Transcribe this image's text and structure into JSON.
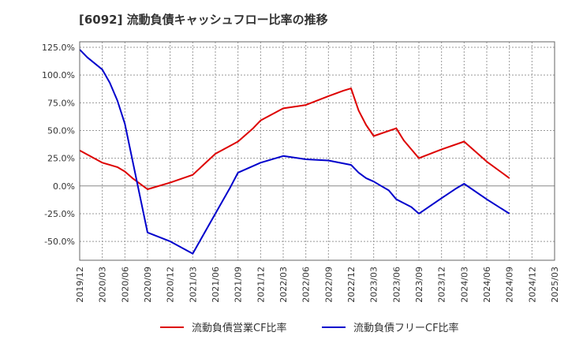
{
  "chart_data": {
    "type": "line",
    "title": "[6092]  流動負債キャッシュフロー比率の推移",
    "xlabel": "",
    "ylabel": "",
    "ylim": [
      -67,
      130
    ],
    "y_ticks": [
      125,
      100,
      75,
      50,
      25,
      0,
      -25,
      -50
    ],
    "y_tick_labels": [
      "125.0%",
      "100.0%",
      "75.0%",
      "50.0%",
      "25.0%",
      "0.0%",
      "-25.0%",
      "-50.0%"
    ],
    "x_range": [
      "2019/12",
      "2025/03"
    ],
    "x_tick_labels": [
      "2019/12",
      "2020/03",
      "2020/06",
      "2020/09",
      "2020/12",
      "2021/03",
      "2021/06",
      "2021/09",
      "2021/12",
      "2022/03",
      "2022/06",
      "2022/09",
      "2022/12",
      "2023/03",
      "2023/06",
      "2023/09",
      "2023/12",
      "2024/03",
      "2024/06",
      "2024/09",
      "2024/12",
      "2025/03"
    ],
    "grid": true,
    "legend_position": "bottom",
    "series": [
      {
        "name": "流動負債営業CF比率",
        "color": "#dd0000",
        "points": [
          [
            "2019/12",
            32
          ],
          [
            "2020/03",
            21
          ],
          [
            "2020/04",
            19
          ],
          [
            "2020/05",
            17
          ],
          [
            "2020/06",
            13
          ],
          [
            "2020/07",
            7
          ],
          [
            "2020/09",
            -3
          ],
          [
            "2020/12",
            3
          ],
          [
            "2021/03",
            10
          ],
          [
            "2021/06",
            29
          ],
          [
            "2021/09",
            40
          ],
          [
            "2021/11",
            52
          ],
          [
            "2021/12",
            59
          ],
          [
            "2022/03",
            70
          ],
          [
            "2022/06",
            73
          ],
          [
            "2022/09",
            81
          ],
          [
            "2022/11",
            86
          ],
          [
            "2022/12",
            88
          ],
          [
            "2023/01",
            68
          ],
          [
            "2023/02",
            55
          ],
          [
            "2023/03",
            45
          ],
          [
            "2023/06",
            52
          ],
          [
            "2023/07",
            41
          ],
          [
            "2023/09",
            25
          ],
          [
            "2023/12",
            33
          ],
          [
            "2024/03",
            40
          ],
          [
            "2024/06",
            22
          ],
          [
            "2024/09",
            7
          ]
        ]
      },
      {
        "name": "流動負債フリーCF比率",
        "color": "#0000cc",
        "points": [
          [
            "2019/12",
            123
          ],
          [
            "2020/01",
            116
          ],
          [
            "2020/03",
            105
          ],
          [
            "2020/04",
            93
          ],
          [
            "2020/05",
            77
          ],
          [
            "2020/06",
            56
          ],
          [
            "2020/09",
            -42
          ],
          [
            "2020/12",
            -50
          ],
          [
            "2021/03",
            -61
          ],
          [
            "2021/06",
            -25
          ],
          [
            "2021/08",
            -1
          ],
          [
            "2021/09",
            12
          ],
          [
            "2021/12",
            21
          ],
          [
            "2022/03",
            27
          ],
          [
            "2022/06",
            24
          ],
          [
            "2022/09",
            23
          ],
          [
            "2022/12",
            19
          ],
          [
            "2023/01",
            12
          ],
          [
            "2023/02",
            7
          ],
          [
            "2023/03",
            4
          ],
          [
            "2023/04",
            0
          ],
          [
            "2023/05",
            -4
          ],
          [
            "2023/06",
            -12
          ],
          [
            "2023/08",
            -19
          ],
          [
            "2023/09",
            -25
          ],
          [
            "2023/12",
            -11
          ],
          [
            "2024/02",
            -2
          ],
          [
            "2024/03",
            2
          ],
          [
            "2024/06",
            -12
          ],
          [
            "2024/09",
            -25
          ]
        ]
      }
    ]
  }
}
